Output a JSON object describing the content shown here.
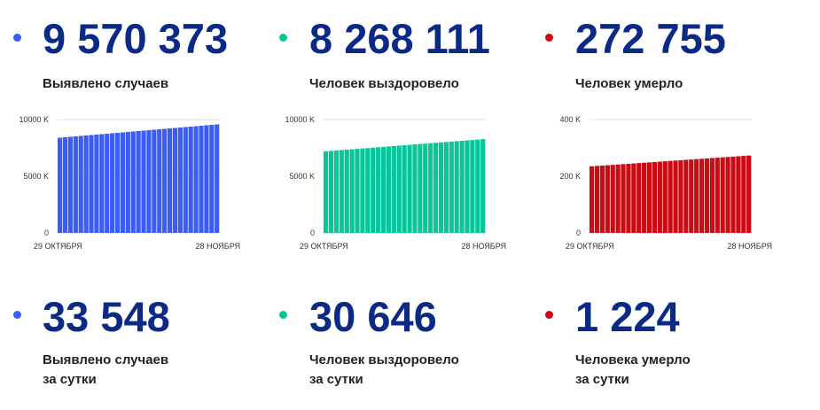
{
  "panels": [
    {
      "value": "9 570 373",
      "label": "Выявлено случаев",
      "color": "#3c5cf6",
      "chart": {
        "x_start": "29 ОКТЯБРЯ",
        "x_end": "28 НОЯБРЯ",
        "ticks": [
          "10000 K",
          "5000 K",
          "0"
        ]
      }
    },
    {
      "value": "8 268 111",
      "label": "Человек выздоровело",
      "color": "#09c59a",
      "chart": {
        "x_start": "29 ОКТЯБРЯ",
        "x_end": "28 НОЯБРЯ",
        "ticks": [
          "10000 K",
          "5000 K",
          "0"
        ]
      }
    },
    {
      "value": "272 755",
      "label": "Человек умерло",
      "color": "#cc0a14",
      "chart": {
        "x_start": "29 ОКТЯБРЯ",
        "x_end": "28 НОЯБРЯ",
        "ticks": [
          "400 K",
          "200 K",
          "0"
        ]
      }
    }
  ],
  "daily": [
    {
      "value": "33 548",
      "label_line1": "Выявлено случаев",
      "label_line2": "за сутки",
      "color": "#3c5cf6"
    },
    {
      "value": "30 646",
      "label_line1": "Человек выздоровело",
      "label_line2": "за сутки",
      "color": "#09c59a"
    },
    {
      "value": "1 224",
      "label_line1": "Человека умерло",
      "label_line2": "за сутки",
      "color": "#cc0a14"
    }
  ],
  "chart_data": [
    {
      "type": "bar",
      "ylim": [
        0,
        10000
      ],
      "y_unit": "K",
      "x_start_label": "29 ОКТЯБРЯ",
      "x_end_label": "28 НОЯБРЯ",
      "bar_count": 31,
      "first_value": 8400,
      "last_value": 9570,
      "color": "#3c5cf6"
    },
    {
      "type": "bar",
      "ylim": [
        0,
        10000
      ],
      "y_unit": "K",
      "x_start_label": "29 ОКТЯБРЯ",
      "x_end_label": "28 НОЯБРЯ",
      "bar_count": 31,
      "first_value": 7200,
      "last_value": 8268,
      "color": "#09c59a"
    },
    {
      "type": "bar",
      "ylim": [
        0,
        400
      ],
      "y_unit": "K",
      "x_start_label": "29 ОКТЯБРЯ",
      "x_end_label": "28 НОЯБРЯ",
      "bar_count": 31,
      "first_value": 235,
      "last_value": 273,
      "color": "#cc0a14"
    }
  ]
}
